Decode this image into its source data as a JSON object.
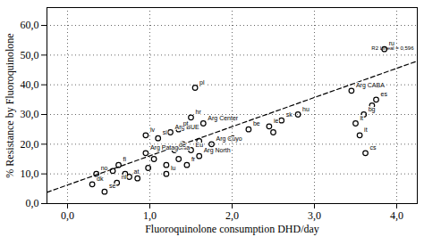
{
  "chart_data": {
    "type": "scatter",
    "x_label": "Fluoroquinolone consumption DHD/day",
    "y_label": "% Resistance by Fluoroquinolone",
    "color": "#000000",
    "marker": "circle",
    "grid": true,
    "xlim": [
      -0.25,
      4.25
    ],
    "ylim": [
      0,
      66
    ],
    "xticks": [
      {
        "value": 0,
        "label": "0,0"
      },
      {
        "value": 1,
        "label": "1,0"
      },
      {
        "value": 2,
        "label": "2,0"
      },
      {
        "value": 3,
        "label": "3,0"
      },
      {
        "value": 4,
        "label": "4,0"
      }
    ],
    "yticks": [
      {
        "value": 0,
        "label": "0,0"
      },
      {
        "value": 10,
        "label": "10,0"
      },
      {
        "value": 20,
        "label": "20,0"
      },
      {
        "value": 30,
        "label": "30,0"
      },
      {
        "value": 40,
        "label": "40,0"
      },
      {
        "value": 50,
        "label": "50,0"
      },
      {
        "value": 60,
        "label": "60,0"
      }
    ],
    "x": [
      0.35,
      0.3,
      0.45,
      0.6,
      0.62,
      0.7,
      0.75,
      0.55,
      0.85,
      0.95,
      0.95,
      0.98,
      1.05,
      1.1,
      1.2,
      1.2,
      1.25,
      1.3,
      1.35,
      1.35,
      1.45,
      1.5,
      1.5,
      1.55,
      1.6,
      1.65,
      1.6,
      1.75,
      1.4,
      2.0,
      2.2,
      2.45,
      2.6,
      2.8,
      3.45,
      3.7,
      3.75,
      3.6,
      3.5,
      3.55,
      3.62,
      3.85,
      2.5
    ],
    "y": [
      10,
      6.5,
      4,
      7,
      13,
      10,
      9,
      11,
      8.5,
      23,
      17,
      12,
      15,
      22,
      10,
      13,
      24,
      18,
      25,
      15,
      13,
      18,
      29,
      39,
      21,
      27,
      16,
      20,
      20,
      22,
      25,
      26,
      28,
      30,
      38,
      33,
      35,
      30,
      27,
      23,
      17,
      52,
      24
    ],
    "labels": [
      "no",
      "dk",
      "se",
      "nl",
      "fi",
      null,
      "at",
      null,
      null,
      "lv",
      "Arg Patagonia",
      null,
      null,
      "si",
      "lu",
      null,
      "Arg BUE",
      "de",
      "pt",
      null,
      "fr",
      "Eu",
      "hr",
      "pl",
      null,
      "Arg Center",
      "Arg North",
      "Arg Cuyo",
      null,
      null,
      "be",
      "ie",
      "sk",
      "hu",
      "Arg CABA",
      null,
      "es",
      "bg",
      "lt",
      "it",
      "cs",
      "ru",
      null
    ],
    "trendline": {
      "x": [
        -0.25,
        4.25
      ],
      "y": [
        3.8,
        48
      ],
      "line_style": "dashed",
      "label": "R2 Lineal = 0,596"
    }
  }
}
